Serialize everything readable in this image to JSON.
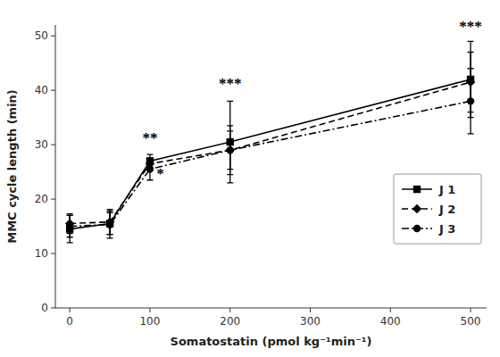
{
  "chart_data": {
    "type": "line",
    "x": [
      0,
      50,
      100,
      200,
      500
    ],
    "series": [
      {
        "name": "J 1",
        "color": "#000000",
        "marker": "square",
        "line_style": "solid",
        "values": [
          14.5,
          15.5,
          27.0,
          30.5,
          42.0
        ],
        "errors": [
          2.5,
          2.0,
          1.2,
          7.5,
          7.0
        ]
      },
      {
        "name": "J 2",
        "color": "#000000",
        "marker": "diamond",
        "line_style": "dashed",
        "values": [
          15.5,
          15.8,
          26.5,
          29.0,
          41.5
        ],
        "errors": [
          1.8,
          2.3,
          1.0,
          4.5,
          5.5
        ]
      },
      {
        "name": "J 3",
        "color": "#000000",
        "marker": "circle",
        "line_style": "dashdot",
        "values": [
          15.0,
          15.3,
          25.5,
          29.0,
          38.0
        ],
        "errors": [
          2.0,
          2.5,
          2.0,
          3.5,
          6.0
        ]
      }
    ],
    "xlabel": "Somatostatin (pmol kg⁻¹min⁻¹)",
    "ylabel": "MMC cycle length (min)",
    "xlim": [
      -18,
      520
    ],
    "ylim": [
      0,
      52
    ],
    "xticks": [
      0,
      100,
      200,
      300,
      400,
      500
    ],
    "yticks": [
      0,
      10,
      20,
      30,
      40,
      50
    ],
    "annotations": [
      {
        "text": "**",
        "x": 100,
        "y": 30.0
      },
      {
        "text": "*",
        "x": 113,
        "y": 23.5
      },
      {
        "text": "***",
        "x": 200,
        "y": 40.0
      },
      {
        "text": "***",
        "x": 500,
        "y": 50.5
      }
    ],
    "legend": "right",
    "grid": false
  }
}
